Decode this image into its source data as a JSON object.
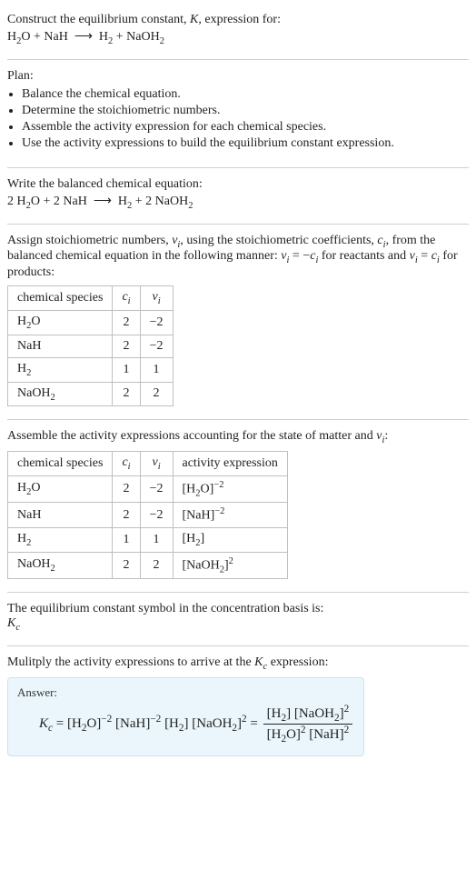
{
  "intro": {
    "line1": "Construct the equilibrium constant, <span class='ital'>K</span>, expression for:",
    "equation": "H<sub>2</sub>O + NaH &nbsp;⟶&nbsp; H<sub>2</sub> + NaOH<sub>2</sub>"
  },
  "plan": {
    "heading": "Plan:",
    "items": [
      "Balance the chemical equation.",
      "Determine the stoichiometric numbers.",
      "Assemble the activity expression for each chemical species.",
      "Use the activity expressions to build the equilibrium constant expression."
    ]
  },
  "balanced": {
    "heading": "Write the balanced chemical equation:",
    "equation": "2 H<sub>2</sub>O + 2 NaH &nbsp;⟶&nbsp; H<sub>2</sub> + 2 NaOH<sub>2</sub>"
  },
  "stoich": {
    "intro": "Assign stoichiometric numbers, <span class='ital'>ν<sub>i</sub></span>, using the stoichiometric coefficients, <span class='ital'>c<sub>i</sub></span>, from the balanced chemical equation in the following manner: <span class='ital'>ν<sub>i</sub></span> = −<span class='ital'>c<sub>i</sub></span> for reactants and <span class='ital'>ν<sub>i</sub></span> = <span class='ital'>c<sub>i</sub></span> for products:",
    "cols": [
      "chemical species",
      "<span class='ital'>c<sub>i</sub></span>",
      "<span class='ital'>ν<sub>i</sub></span>"
    ],
    "rows": [
      [
        "H<sub>2</sub>O",
        "2",
        "−2"
      ],
      [
        "NaH",
        "2",
        "−2"
      ],
      [
        "H<sub>2</sub>",
        "1",
        "1"
      ],
      [
        "NaOH<sub>2</sub>",
        "2",
        "2"
      ]
    ]
  },
  "activity": {
    "intro": "Assemble the activity expressions accounting for the state of matter and <span class='ital'>ν<sub>i</sub></span>:",
    "cols": [
      "chemical species",
      "<span class='ital'>c<sub>i</sub></span>",
      "<span class='ital'>ν<sub>i</sub></span>",
      "activity expression"
    ],
    "rows": [
      [
        "H<sub>2</sub>O",
        "2",
        "−2",
        "[H<sub>2</sub>O]<sup>−2</sup>"
      ],
      [
        "NaH",
        "2",
        "−2",
        "[NaH]<sup>−2</sup>"
      ],
      [
        "H<sub>2</sub>",
        "1",
        "1",
        "[H<sub>2</sub>]"
      ],
      [
        "NaOH<sub>2</sub>",
        "2",
        "2",
        "[NaOH<sub>2</sub>]<sup>2</sup>"
      ]
    ]
  },
  "symbol": {
    "line1": "The equilibrium constant symbol in the concentration basis is:",
    "line2": "<span class='ital'>K<sub>c</sub></span>"
  },
  "final": {
    "intro": "Mulitply the activity expressions to arrive at the <span class='ital'>K<sub>c</sub></span> expression:",
    "answer_label": "Answer:",
    "lhs": "<span class='ital'>K<sub>c</sub></span> = [H<sub>2</sub>O]<sup>−2</sup> [NaH]<sup>−2</sup> [H<sub>2</sub>] [NaOH<sub>2</sub>]<sup>2</sup> = ",
    "frac_num": "[H<sub>2</sub>] [NaOH<sub>2</sub>]<sup>2</sup>",
    "frac_den": "[H<sub>2</sub>O]<sup>2</sup> [NaH]<sup>2</sup>"
  }
}
